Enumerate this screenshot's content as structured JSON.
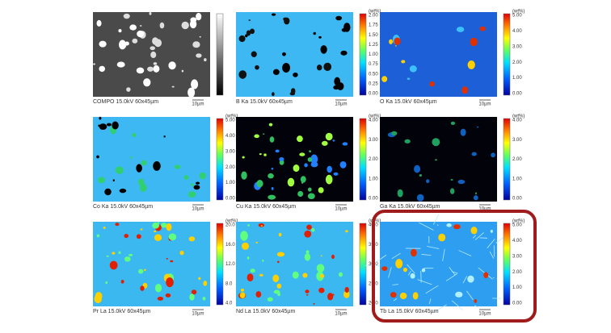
{
  "panels": [
    {
      "caption": "COMPO 15.0kV 60x45µm",
      "scale_bar": "10µm",
      "unit": null,
      "colorbar_ticks": []
    },
    {
      "caption": "B Ka 15.0kV 60x45µm",
      "scale_bar": "10µm",
      "unit": "(wt%)",
      "colorbar_ticks": [
        "2.00",
        "1.75",
        "1.50",
        "1.25",
        "1.00",
        "0.75",
        "0.50",
        "0.25",
        "0.00"
      ]
    },
    {
      "caption": "O Ka 15.0kV 60x45µm",
      "scale_bar": "10µm",
      "unit": "(wt%)",
      "colorbar_ticks": [
        "5.00",
        "4.00",
        "3.00",
        "2.00",
        "1.00",
        "0.00"
      ]
    },
    {
      "caption": "Co Ka 15.0kV 60x45µm",
      "scale_bar": "10µm",
      "unit": "(wt%)",
      "colorbar_ticks": [
        "5.00",
        "4.00",
        "3.00",
        "2.00",
        "1.00",
        "0.00"
      ]
    },
    {
      "caption": "Cu Ka 15.0kV 60x45µm",
      "scale_bar": "10µm",
      "unit": "(wt%)",
      "colorbar_ticks": [
        "4.00",
        "3.00",
        "2.00",
        "1.00",
        "0.00"
      ]
    },
    {
      "caption": "Ga Ka 15.0kV 60x45µm",
      "scale_bar": "10µm",
      "unit": "(wt%)",
      "colorbar_ticks": [
        "4.00",
        "3.00",
        "2.00",
        "1.00",
        "0.00"
      ]
    },
    {
      "caption": "Pr La 15.0kV 60x45µm",
      "scale_bar": "10µm",
      "unit": "(wt%)",
      "colorbar_ticks": [
        "20.0",
        "16.0",
        "12.0",
        "8.0",
        "4.0"
      ]
    },
    {
      "caption": "Nd La 15.0kV 60x45µm",
      "scale_bar": "10µm",
      "unit": "(wt%)",
      "colorbar_ticks": [
        "40.0",
        "35.0",
        "30.0",
        "25.0",
        "20.0"
      ]
    },
    {
      "caption": "Tb La 15.0kV 60x45µm",
      "scale_bar": "10µm",
      "unit": "(wt%)",
      "colorbar_ticks": [
        "5.00",
        "4.00",
        "3.00",
        "2.00",
        "1.00",
        "0.00"
      ]
    }
  ]
}
